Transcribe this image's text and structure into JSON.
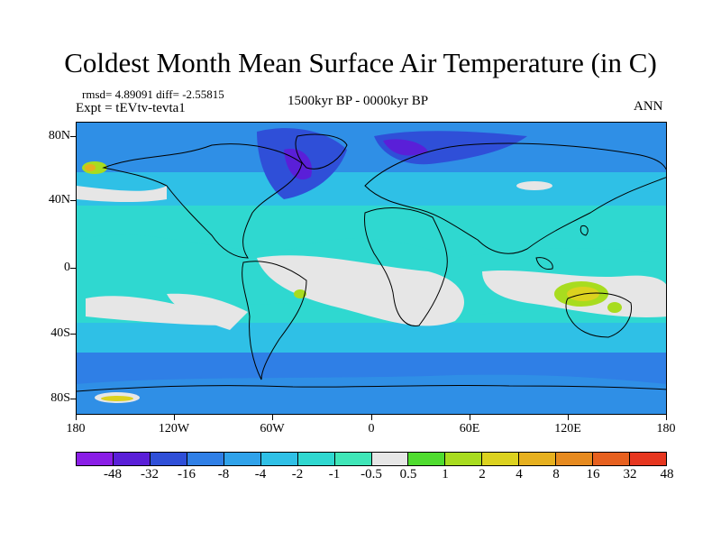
{
  "title": "Coldest Month Mean Surface Air Temperature (in C)",
  "stats": {
    "rmsd_diff": "rmsd= 4.89091  diff= -2.55815",
    "experiment": "Expt = tEVtv-tevta1"
  },
  "period": "1500kyr BP - 0000kyr BP",
  "season": "ANN",
  "axes": {
    "y_ticks": [
      "80N",
      "40N",
      "0",
      "40S",
      "80S"
    ],
    "x_ticks": [
      "180",
      "120W",
      "60W",
      "0",
      "60E",
      "120E",
      "180"
    ]
  },
  "colorbar": {
    "colors": [
      "#8a1ee6",
      "#5a1fd8",
      "#2f4fd8",
      "#2f7fe6",
      "#2fa2ea",
      "#2fc0e6",
      "#2fd8d0",
      "#3fe6b8",
      "#e6e6e6",
      "#4fdc2f",
      "#a8dc1f",
      "#dcd21f",
      "#e6b01f",
      "#e68a1f",
      "#e6601f",
      "#e6361f"
    ],
    "labels": [
      "-48",
      "-32",
      "-16",
      "-8",
      "-4",
      "-2",
      "-1",
      "-0.5",
      "0.5",
      "1",
      "2",
      "4",
      "8",
      "16",
      "32",
      "48"
    ]
  }
}
